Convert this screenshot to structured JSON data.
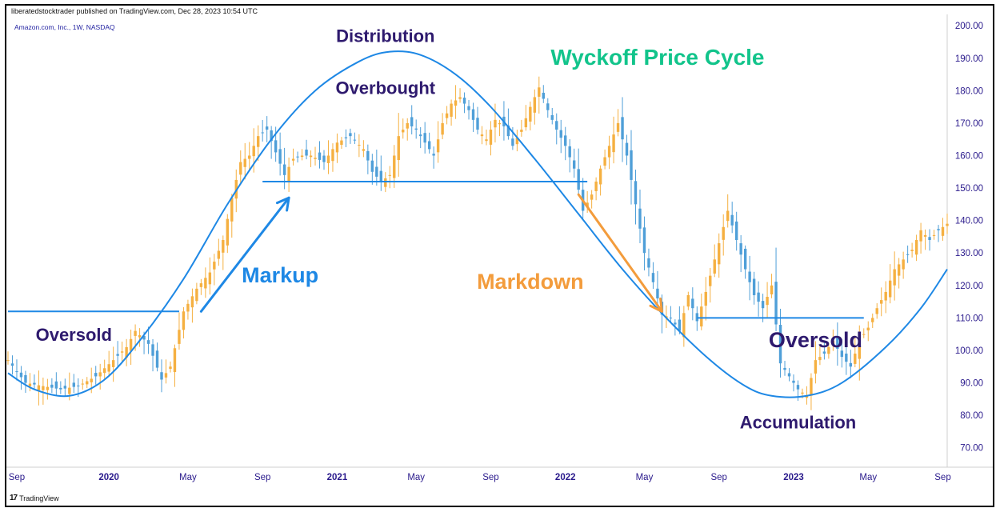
{
  "header": {
    "publisher": "liberatedstocktrader published on TradingView.com, Dec 28, 2023 10:54 UTC",
    "symbol": "Amazon.com, Inc., 1W, NASDAQ"
  },
  "footer": {
    "logo_mark": "17",
    "logo_text": "TradingView"
  },
  "colors": {
    "up_candle": "#f5b041",
    "down_candle": "#4f9fd8",
    "cycle_line": "#1e88e5",
    "annotation_purple": "#2e1a6e",
    "markup_blue": "#1e88e5",
    "markdown_orange": "#f39c3c",
    "title_green": "#12c48b",
    "axis_text": "#2a1a8c"
  },
  "chart_data": {
    "type": "candlestick-annotated",
    "title": "Wyckoff Price Cycle",
    "x_tick_labels": [
      "Sep",
      "2020",
      "May",
      "Sep",
      "2021",
      "May",
      "Sep",
      "2022",
      "May",
      "Sep",
      "2023",
      "May",
      "Sep"
    ],
    "x_tick_weeks": [
      2,
      23,
      41,
      58,
      75,
      93,
      110,
      127,
      145,
      162,
      179,
      196,
      213
    ],
    "y_tick_labels": [
      "70.00",
      "80.00",
      "90.00",
      "100.00",
      "110.00",
      "120.00",
      "130.00",
      "140.00",
      "150.00",
      "160.00",
      "170.00",
      "180.00",
      "190.00",
      "200.00"
    ],
    "y_ticks": [
      70,
      80,
      90,
      100,
      110,
      120,
      130,
      140,
      150,
      160,
      170,
      180,
      190,
      200
    ],
    "ylim": [
      65,
      203
    ],
    "week_range": [
      0,
      214
    ],
    "weekly_close_path": [
      [
        0,
        97
      ],
      [
        4,
        90
      ],
      [
        8,
        89
      ],
      [
        12,
        88
      ],
      [
        16,
        89
      ],
      [
        20,
        92
      ],
      [
        24,
        97
      ],
      [
        27,
        101
      ],
      [
        29,
        106
      ],
      [
        32,
        102
      ],
      [
        35,
        91
      ],
      [
        37,
        95
      ],
      [
        40,
        112
      ],
      [
        43,
        119
      ],
      [
        46,
        124
      ],
      [
        49,
        134
      ],
      [
        51,
        147
      ],
      [
        53,
        158
      ],
      [
        55,
        160
      ],
      [
        57,
        166
      ],
      [
        59,
        168
      ],
      [
        61,
        161
      ],
      [
        63,
        154
      ],
      [
        65,
        159
      ],
      [
        67,
        160
      ],
      [
        69,
        160
      ],
      [
        72,
        158
      ],
      [
        75,
        164
      ],
      [
        78,
        166
      ],
      [
        81,
        162
      ],
      [
        83,
        155
      ],
      [
        85,
        152
      ],
      [
        87,
        154
      ],
      [
        89,
        166
      ],
      [
        91,
        170
      ],
      [
        93,
        168
      ],
      [
        95,
        164
      ],
      [
        97,
        160
      ],
      [
        99,
        170
      ],
      [
        101,
        176
      ],
      [
        103,
        178
      ],
      [
        105,
        174
      ],
      [
        107,
        168
      ],
      [
        109,
        165
      ],
      [
        111,
        171
      ],
      [
        113,
        169
      ],
      [
        115,
        163
      ],
      [
        117,
        168
      ],
      [
        119,
        175
      ],
      [
        121,
        181
      ],
      [
        123,
        174
      ],
      [
        125,
        168
      ],
      [
        127,
        163
      ],
      [
        129,
        156
      ],
      [
        131,
        143
      ],
      [
        133,
        148
      ],
      [
        135,
        156
      ],
      [
        137,
        163
      ],
      [
        139,
        170
      ],
      [
        141,
        160
      ],
      [
        143,
        145
      ],
      [
        145,
        130
      ],
      [
        147,
        121
      ],
      [
        149,
        111
      ],
      [
        151,
        110
      ],
      [
        153,
        106
      ],
      [
        155,
        117
      ],
      [
        157,
        109
      ],
      [
        159,
        118
      ],
      [
        161,
        128
      ],
      [
        163,
        138
      ],
      [
        164,
        143
      ],
      [
        166,
        134
      ],
      [
        168,
        125
      ],
      [
        170,
        117
      ],
      [
        172,
        113
      ],
      [
        174,
        120
      ],
      [
        176,
        96
      ],
      [
        178,
        92
      ],
      [
        180,
        88
      ],
      [
        182,
        86
      ],
      [
        184,
        97
      ],
      [
        186,
        99
      ],
      [
        188,
        103
      ],
      [
        190,
        98
      ],
      [
        192,
        95
      ],
      [
        194,
        103
      ],
      [
        196,
        107
      ],
      [
        198,
        113
      ],
      [
        200,
        118
      ],
      [
        202,
        125
      ],
      [
        204,
        128
      ],
      [
        206,
        131
      ],
      [
        208,
        137
      ],
      [
        210,
        134
      ],
      [
        212,
        137
      ],
      [
        214,
        139
      ]
    ],
    "support_resistance_lines": [
      {
        "price": 112,
        "from_week": 0,
        "to_week": 39
      },
      {
        "price": 152,
        "from_week": 58,
        "to_week": 132
      },
      {
        "price": 110,
        "from_week": 157,
        "to_week": 195
      }
    ],
    "cycle_curve": [
      [
        0,
        93
      ],
      [
        6,
        88
      ],
      [
        14,
        86
      ],
      [
        22,
        91
      ],
      [
        30,
        103
      ],
      [
        40,
        122
      ],
      [
        50,
        145
      ],
      [
        60,
        165
      ],
      [
        70,
        180
      ],
      [
        80,
        189
      ],
      [
        87,
        192
      ],
      [
        94,
        191
      ],
      [
        102,
        185
      ],
      [
        110,
        175
      ],
      [
        120,
        159
      ],
      [
        130,
        142
      ],
      [
        140,
        125
      ],
      [
        150,
        110
      ],
      [
        160,
        97
      ],
      [
        168,
        89
      ],
      [
        174,
        86
      ],
      [
        182,
        86
      ],
      [
        190,
        90
      ],
      [
        200,
        101
      ],
      [
        208,
        113
      ],
      [
        214,
        125
      ]
    ],
    "annotations": [
      {
        "text": "Distribution",
        "week": 86,
        "price": 195,
        "style": "purple"
      },
      {
        "text": "Overbought",
        "week": 86,
        "price": 179,
        "style": "purple"
      },
      {
        "text": "Oversold",
        "week": 15,
        "price": 103,
        "style": "purple"
      },
      {
        "text": "Oversold",
        "week": 184,
        "price": 101,
        "style": "purple-large"
      },
      {
        "text": "Accumulation",
        "week": 180,
        "price": 76,
        "style": "purple"
      },
      {
        "text": "Markup",
        "week": 62,
        "price": 121,
        "style": "blue"
      },
      {
        "text": "Markdown",
        "week": 119,
        "price": 119,
        "style": "orange"
      },
      {
        "text": "Wyckoff Price Cycle",
        "week": 148,
        "price": 188,
        "style": "green-title"
      }
    ],
    "arrows": [
      {
        "name": "markup-arrow",
        "from": [
          44,
          112
        ],
        "to": [
          64,
          147
        ],
        "color": "blue"
      },
      {
        "name": "markdown-arrow",
        "from": [
          130,
          148
        ],
        "to": [
          149,
          112
        ],
        "color": "orange"
      }
    ]
  }
}
